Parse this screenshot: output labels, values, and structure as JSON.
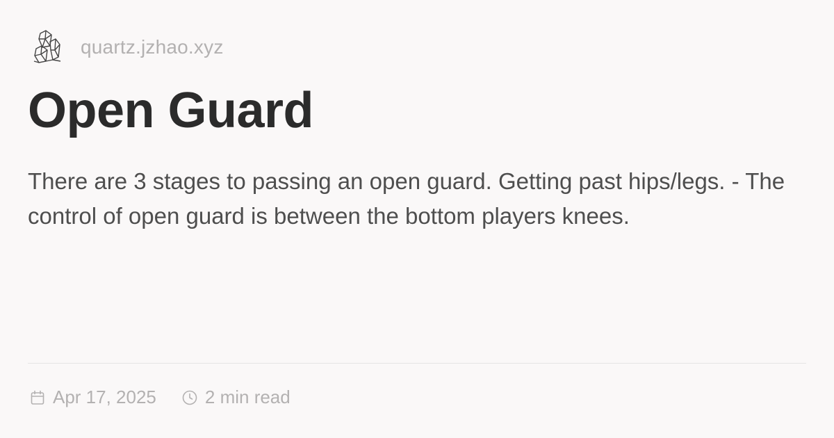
{
  "site": {
    "name": "quartz.jzhao.xyz",
    "logo_icon": "crystal-logo-icon"
  },
  "page": {
    "title": "Open Guard",
    "description": "There are 3 stages to passing an open guard. Getting past hips/legs. - The control of open guard is between the bottom players knees."
  },
  "meta": {
    "date_icon": "calendar-icon",
    "date": "Apr 17, 2025",
    "reading_time_icon": "clock-icon",
    "reading_time": "2 min read"
  },
  "colors": {
    "background": "#faf8f8",
    "title": "#2b2b2b",
    "body": "#4e4e4e",
    "muted": "#b3b1b1",
    "divider": "#e5e5e5"
  }
}
